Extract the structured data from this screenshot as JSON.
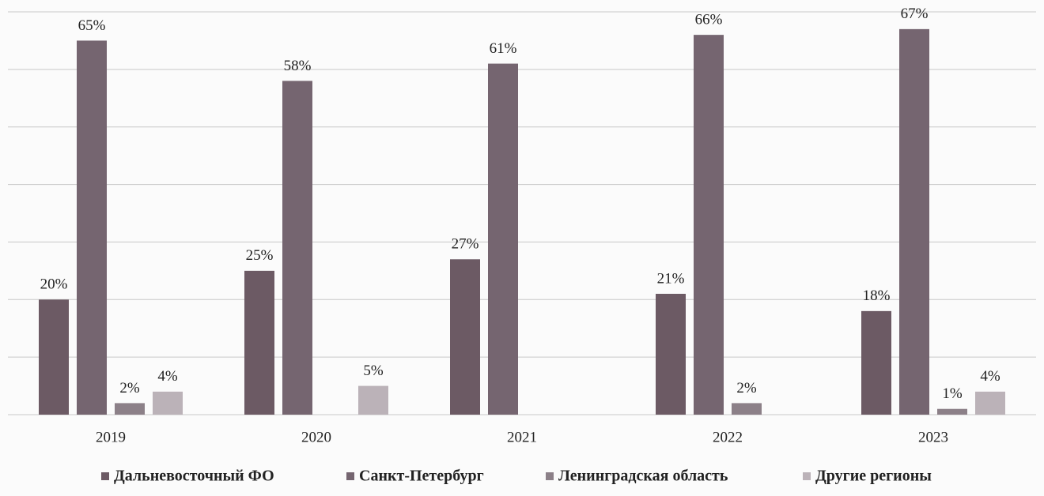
{
  "chart_data": {
    "type": "bar",
    "categories": [
      "2019",
      "2020",
      "2021",
      "2022",
      "2023"
    ],
    "series": [
      {
        "name": "Дальневосточный ФО",
        "color": "#6c5a64",
        "values": [
          20,
          25,
          27,
          21,
          18
        ],
        "value_labels": [
          "20%",
          "25%",
          "27%",
          "21%",
          "18%"
        ]
      },
      {
        "name": "Санкт-Петербург",
        "color": "#756570",
        "values": [
          65,
          58,
          61,
          66,
          67
        ],
        "value_labels": [
          "65%",
          "58%",
          "61%",
          "66%",
          "67%"
        ]
      },
      {
        "name": "Ленинградская область",
        "color": "#8c8088",
        "values": [
          2,
          null,
          null,
          2,
          1
        ],
        "value_labels": [
          "2%",
          null,
          null,
          "2%",
          "1%"
        ]
      },
      {
        "name": "Другие регионы",
        "color": "#bbb2b8",
        "values": [
          4,
          5,
          null,
          null,
          4
        ],
        "value_labels": [
          "4%",
          "5%",
          null,
          null,
          "4%"
        ]
      }
    ],
    "ylim": [
      0,
      70
    ],
    "yticks": [
      0,
      10,
      20,
      30,
      40,
      50,
      60,
      70
    ],
    "grid": true,
    "legend": "bottom"
  }
}
